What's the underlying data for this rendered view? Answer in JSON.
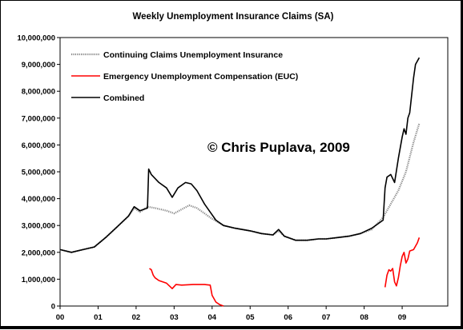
{
  "chart_data": {
    "type": "line",
    "title": "Weekly Unemployment Insurance Claims (SA)",
    "watermark": "© Chris Puplava, 2009",
    "xlabel": "",
    "ylabel": "",
    "x_ticks": [
      "00",
      "01",
      "02",
      "03",
      "04",
      "05",
      "06",
      "07",
      "08",
      "09"
    ],
    "x_range": [
      2000.0,
      2010.2
    ],
    "y_ticks": [
      "0",
      "1,000,000",
      "2,000,000",
      "3,000,000",
      "4,000,000",
      "5,000,000",
      "6,000,000",
      "7,000,000",
      "8,000,000",
      "9,000,000",
      "10,000,000"
    ],
    "ylim": [
      0,
      10000000
    ],
    "grid": false,
    "legend_position": "top-left",
    "series": [
      {
        "name": "Continuing Claims Unemployment Insurance",
        "color": "#888888",
        "style": "dotted",
        "x": [
          2000.0,
          2000.3,
          2000.6,
          2000.9,
          2001.2,
          2001.5,
          2001.8,
          2001.95,
          2002.1,
          2002.3,
          2002.5,
          2002.8,
          2003.0,
          2003.2,
          2003.4,
          2003.6,
          2003.8,
          2004.0,
          2004.3,
          2004.6,
          2005.0,
          2005.3,
          2005.6,
          2005.75,
          2005.9,
          2006.2,
          2006.5,
          2006.8,
          2007.0,
          2007.3,
          2007.6,
          2007.9,
          2008.2,
          2008.5,
          2008.7,
          2008.9,
          2009.1,
          2009.3,
          2009.45
        ],
        "values": [
          2100000,
          2000000,
          2100000,
          2200000,
          2550000,
          2950000,
          3350000,
          3650000,
          3500000,
          3700000,
          3650000,
          3550000,
          3450000,
          3600000,
          3750000,
          3650000,
          3450000,
          3250000,
          3000000,
          2900000,
          2800000,
          2700000,
          2650000,
          2800000,
          2600000,
          2450000,
          2450000,
          2500000,
          2500000,
          2550000,
          2600000,
          2700000,
          2850000,
          3300000,
          3800000,
          4300000,
          5000000,
          6100000,
          6800000
        ]
      },
      {
        "name": "Emergency Unemployment Compensation (EUC)",
        "color": "#ff0000",
        "style": "solid",
        "segments": [
          {
            "x": [
              2002.35,
              2002.4,
              2002.45,
              2002.5,
              2002.6,
              2002.8,
              2002.95,
              2003.05,
              2003.2,
              2003.5,
              2003.8,
              2003.95,
              2004.0,
              2004.1,
              2004.2,
              2004.3
            ],
            "values": [
              1400000,
              1350000,
              1150000,
              1050000,
              950000,
              850000,
              650000,
              800000,
              780000,
              800000,
              800000,
              780000,
              400000,
              150000,
              50000,
              0
            ]
          },
          {
            "x": [
              2008.55,
              2008.6,
              2008.65,
              2008.7,
              2008.75,
              2008.8,
              2008.85,
              2008.9,
              2008.95,
              2009.0,
              2009.05,
              2009.1,
              2009.15,
              2009.2,
              2009.3,
              2009.4,
              2009.45
            ],
            "values": [
              700000,
              1150000,
              1350000,
              1300000,
              1400000,
              900000,
              750000,
              1050000,
              1500000,
              1850000,
              2000000,
              1600000,
              1750000,
              2050000,
              2100000,
              2350000,
              2550000
            ]
          }
        ]
      },
      {
        "name": "Combined",
        "color": "#000000",
        "style": "solid",
        "x": [
          2000.0,
          2000.3,
          2000.6,
          2000.9,
          2001.2,
          2001.5,
          2001.8,
          2001.95,
          2002.1,
          2002.3,
          2002.33,
          2002.4,
          2002.6,
          2002.8,
          2002.95,
          2003.1,
          2003.3,
          2003.45,
          2003.6,
          2003.8,
          2003.95,
          2004.1,
          2004.3,
          2004.6,
          2005.0,
          2005.3,
          2005.6,
          2005.75,
          2005.9,
          2006.2,
          2006.5,
          2006.8,
          2007.0,
          2007.3,
          2007.6,
          2007.9,
          2008.2,
          2008.5,
          2008.55,
          2008.6,
          2008.7,
          2008.8,
          2008.9,
          2009.0,
          2009.05,
          2009.1,
          2009.15,
          2009.2,
          2009.3,
          2009.35,
          2009.45
        ],
        "values": [
          2100000,
          2000000,
          2100000,
          2200000,
          2550000,
          2950000,
          3350000,
          3700000,
          3550000,
          3650000,
          5100000,
          4900000,
          4600000,
          4400000,
          4050000,
          4400000,
          4600000,
          4550000,
          4300000,
          3800000,
          3500000,
          3200000,
          3000000,
          2900000,
          2800000,
          2700000,
          2650000,
          2850000,
          2600000,
          2450000,
          2450000,
          2500000,
          2500000,
          2550000,
          2600000,
          2700000,
          2900000,
          3200000,
          4400000,
          4800000,
          4900000,
          4600000,
          5500000,
          6300000,
          6600000,
          6400000,
          7000000,
          7200000,
          8500000,
          9000000,
          9250000
        ]
      }
    ]
  }
}
